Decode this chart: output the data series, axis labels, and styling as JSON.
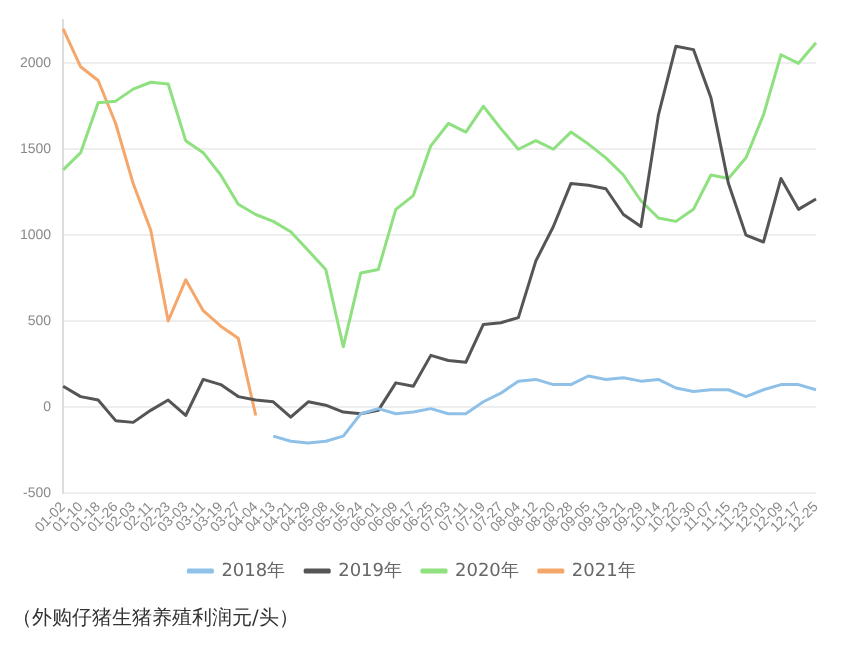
{
  "chart_data": {
    "type": "line",
    "categories": [
      "01-02",
      "01-10",
      "01-18",
      "01-26",
      "02-03",
      "02-11",
      "02-23",
      "03-03",
      "03-11",
      "03-19",
      "03-27",
      "04-04",
      "04-13",
      "04-21",
      "04-29",
      "05-08",
      "05-16",
      "05-24",
      "06-01",
      "06-09",
      "06-17",
      "06-25",
      "07-03",
      "07-11",
      "07-19",
      "07-27",
      "08-04",
      "08-12",
      "08-20",
      "08-28",
      "09-05",
      "09-13",
      "09-21",
      "09-29",
      "10-14",
      "10-22",
      "10-30",
      "11-07",
      "11-15",
      "11-23",
      "12-01",
      "12-09",
      "12-17",
      "12-25"
    ],
    "series": [
      {
        "name": "2018年",
        "color": "#8fc1e8",
        "values": [
          null,
          null,
          null,
          null,
          null,
          null,
          null,
          null,
          null,
          null,
          null,
          null,
          -170,
          -200,
          -210,
          -200,
          -170,
          -40,
          -10,
          -40,
          -30,
          -10,
          -40,
          -40,
          30,
          80,
          150,
          160,
          130,
          130,
          180,
          160,
          170,
          150,
          160,
          110,
          90,
          100,
          100,
          60,
          100,
          130,
          130,
          100
        ]
      },
      {
        "name": "2019年",
        "color": "#555555",
        "values": [
          120,
          60,
          40,
          -80,
          -90,
          -20,
          40,
          -50,
          160,
          130,
          60,
          40,
          30,
          -60,
          30,
          10,
          -30,
          -40,
          -20,
          140,
          120,
          300,
          270,
          260,
          480,
          490,
          520,
          850,
          1050,
          1300,
          1290,
          1270,
          1120,
          1050,
          1700,
          2100,
          2080,
          1800,
          1300,
          1000,
          960,
          1330,
          1150,
          1210
        ]
      },
      {
        "name": "2020年",
        "color": "#8fe07f",
        "values": [
          1380,
          1480,
          1770,
          1780,
          1850,
          1890,
          1880,
          1550,
          1480,
          1350,
          1180,
          1120,
          1080,
          1020,
          910,
          800,
          350,
          780,
          800,
          1150,
          1230,
          1520,
          1650,
          1600,
          1750,
          1620,
          1500,
          1550,
          1500,
          1600,
          1530,
          1450,
          1350,
          1200,
          1100,
          1080,
          1150,
          1350,
          1330,
          1450,
          1700,
          2050,
          2000,
          2120
        ]
      },
      {
        "name": "2021年",
        "color": "#f5a66b",
        "values": [
          2200,
          1980,
          1900,
          1650,
          1300,
          1030,
          500,
          740,
          560,
          470,
          400,
          -50,
          null,
          null,
          null,
          null,
          null,
          null,
          null,
          null,
          null,
          null,
          null,
          null,
          null,
          null,
          null,
          null,
          null,
          null,
          null,
          null,
          null,
          null,
          null,
          null,
          null,
          null,
          null,
          null,
          null,
          null,
          null,
          null
        ]
      }
    ],
    "ylim": [
      -500,
      2250
    ],
    "yticks": [
      -500,
      0,
      500,
      1000,
      1500,
      2000
    ],
    "grid": "y",
    "legend": "bottom",
    "marker": "none",
    "annotations": [
      "（外购仔猪生猪养殖利润元/头）"
    ]
  }
}
